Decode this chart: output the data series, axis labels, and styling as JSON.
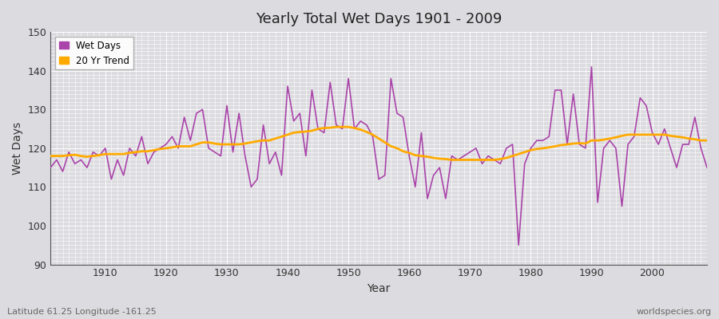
{
  "title": "Yearly Total Wet Days 1901 - 2009",
  "xlabel": "Year",
  "ylabel": "Wet Days",
  "bottom_left_label": "Latitude 61.25 Longitude -161.25",
  "bottom_right_label": "worldspecies.org",
  "ylim": [
    90,
    150
  ],
  "xlim": [
    1901,
    2009
  ],
  "wet_days_color": "#aa44aa",
  "trend_color": "#ffaa00",
  "background_color": "#e8e8ec",
  "plot_bg_color": "#dcdce8",
  "grid_color": "#ffffff",
  "years": [
    1901,
    1902,
    1903,
    1904,
    1905,
    1906,
    1907,
    1908,
    1909,
    1910,
    1911,
    1912,
    1913,
    1914,
    1915,
    1916,
    1917,
    1918,
    1919,
    1920,
    1921,
    1922,
    1923,
    1924,
    1925,
    1926,
    1927,
    1928,
    1929,
    1930,
    1931,
    1932,
    1933,
    1934,
    1935,
    1936,
    1937,
    1938,
    1939,
    1940,
    1941,
    1942,
    1943,
    1944,
    1945,
    1946,
    1947,
    1948,
    1949,
    1950,
    1951,
    1952,
    1953,
    1954,
    1955,
    1956,
    1957,
    1958,
    1959,
    1960,
    1961,
    1962,
    1963,
    1964,
    1965,
    1966,
    1967,
    1968,
    1969,
    1970,
    1971,
    1972,
    1973,
    1974,
    1975,
    1976,
    1977,
    1978,
    1979,
    1980,
    1981,
    1982,
    1983,
    1984,
    1985,
    1986,
    1987,
    1988,
    1989,
    1990,
    1991,
    1992,
    1993,
    1994,
    1995,
    1996,
    1997,
    1998,
    1999,
    2000,
    2001,
    2002,
    2003,
    2004,
    2005,
    2006,
    2007,
    2008,
    2009
  ],
  "wet_days": [
    115,
    117,
    114,
    119,
    116,
    117,
    115,
    119,
    118,
    120,
    112,
    117,
    113,
    120,
    118,
    123,
    116,
    119,
    120,
    121,
    123,
    120,
    128,
    122,
    129,
    130,
    120,
    119,
    118,
    131,
    119,
    129,
    118,
    110,
    112,
    126,
    116,
    119,
    113,
    136,
    127,
    129,
    118,
    135,
    125,
    124,
    137,
    126,
    125,
    138,
    125,
    127,
    126,
    123,
    112,
    113,
    138,
    129,
    128,
    118,
    110,
    124,
    107,
    113,
    115,
    107,
    118,
    117,
    118,
    119,
    120,
    116,
    118,
    117,
    116,
    120,
    121,
    95,
    116,
    120,
    122,
    122,
    123,
    135,
    135,
    121,
    134,
    121,
    120,
    141,
    106,
    120,
    122,
    120,
    105,
    121,
    123,
    133,
    131,
    124,
    121,
    125,
    120,
    115,
    121,
    121,
    128,
    120,
    115
  ],
  "trend_values": [
    118.0,
    118.0,
    118.0,
    118.2,
    118.3,
    118.0,
    117.8,
    118.0,
    118.2,
    118.5,
    118.5,
    118.5,
    118.5,
    118.8,
    119.0,
    119.2,
    119.2,
    119.5,
    119.8,
    120.0,
    120.2,
    120.5,
    120.5,
    120.5,
    121.0,
    121.5,
    121.5,
    121.2,
    121.0,
    121.0,
    121.0,
    121.0,
    121.2,
    121.5,
    121.8,
    122.0,
    122.0,
    122.5,
    123.0,
    123.5,
    124.0,
    124.2,
    124.3,
    124.5,
    125.0,
    125.2,
    125.3,
    125.5,
    125.5,
    125.5,
    125.2,
    124.8,
    124.2,
    123.5,
    122.5,
    121.5,
    120.5,
    120.0,
    119.2,
    118.8,
    118.2,
    118.0,
    117.8,
    117.5,
    117.3,
    117.2,
    117.0,
    117.0,
    117.0,
    117.0,
    117.0,
    117.0,
    117.0,
    117.0,
    117.2,
    117.5,
    118.0,
    118.5,
    119.0,
    119.5,
    119.8,
    120.0,
    120.2,
    120.5,
    120.8,
    121.0,
    121.2,
    121.3,
    121.2,
    122.0,
    122.0,
    122.2,
    122.5,
    122.8,
    123.2,
    123.5,
    123.5,
    123.5,
    123.5,
    123.5,
    123.5,
    123.5,
    123.2,
    123.0,
    122.8,
    122.5,
    122.3,
    122.0,
    122.0
  ]
}
